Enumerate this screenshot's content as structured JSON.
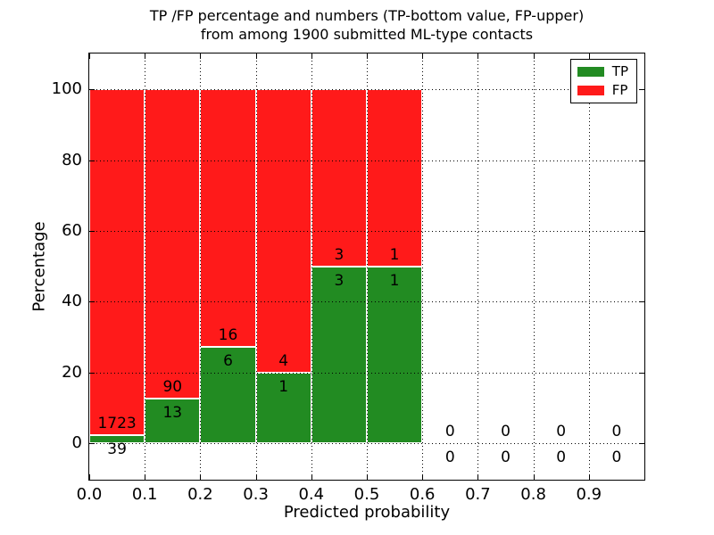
{
  "chart_data": {
    "type": "bar",
    "stacked": true,
    "title": "TP /FP percentage and numbers (TP-bottom value, FP-upper) from among 1900 submitted ML-type contacts",
    "title_line1": "TP /FP percentage and numbers (TP-bottom value, FP-upper)",
    "title_line2": "from among 1900 submitted ML-type contacts",
    "xlabel": "Predicted probability",
    "ylabel": "Percentage",
    "xlim": [
      0.0,
      1.0
    ],
    "ylim": [
      -10.3,
      110.1
    ],
    "grid": "dotted",
    "legend_position": "upper right",
    "xticks": {
      "values": [
        0.0,
        0.1,
        0.2,
        0.3,
        0.4,
        0.5,
        0.6,
        0.7,
        0.8,
        0.9
      ],
      "labels": [
        "0.0",
        "0.1",
        "0.2",
        "0.3",
        "0.4",
        "0.5",
        "0.6",
        "0.7",
        "0.8",
        "0.9"
      ]
    },
    "yticks": {
      "values": [
        0,
        20,
        40,
        60,
        80,
        100
      ],
      "labels": [
        "0",
        "20",
        "40",
        "60",
        "80",
        "100"
      ]
    },
    "categories": [
      "0.0-0.1",
      "0.1-0.2",
      "0.2-0.3",
      "0.3-0.4",
      "0.4-0.5",
      "0.5-0.6",
      "0.6-0.7",
      "0.7-0.8",
      "0.8-0.9",
      "0.9-1.0"
    ],
    "bin_edges": [
      0.0,
      0.1,
      0.2,
      0.3,
      0.4,
      0.5,
      0.6,
      0.7,
      0.8,
      0.9,
      1.0
    ],
    "series": [
      {
        "name": "TP",
        "color": "#228B22",
        "counts": [
          39,
          13,
          6,
          1,
          3,
          1,
          0,
          0,
          0,
          0
        ]
      },
      {
        "name": "FP",
        "color": "#FF1A1A",
        "counts": [
          1723,
          90,
          16,
          4,
          3,
          1,
          0,
          0,
          0,
          0
        ]
      }
    ],
    "tp_percent_of_bin": [
      2.2,
      12.6,
      27.3,
      20.0,
      50.0,
      50.0,
      0,
      0,
      0,
      0
    ],
    "bar_top_percent": 100,
    "total_contacts": 1900
  }
}
